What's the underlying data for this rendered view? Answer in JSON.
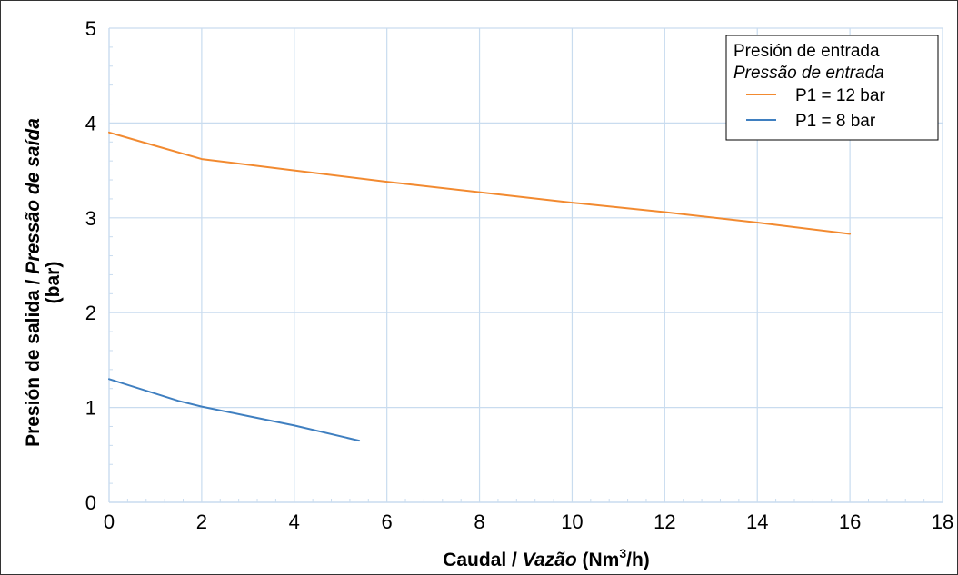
{
  "chart_data": {
    "type": "line",
    "xlabel_parts": [
      "Caudal / ",
      "Vazão",
      " (Nm",
      "3",
      "/h)"
    ],
    "ylabel_line1": [
      "Presión de salida / ",
      "Pressão de saída"
    ],
    "ylabel_line2": "(bar)",
    "xlim": [
      0,
      18
    ],
    "ylim": [
      0,
      5
    ],
    "x_ticks": [
      0,
      2,
      4,
      6,
      8,
      10,
      12,
      14,
      16,
      18
    ],
    "y_ticks": [
      0,
      1,
      2,
      3,
      4,
      5
    ],
    "grid": true,
    "legend": {
      "title_line1": "Presión de entrada",
      "title_line2": "Pressão de entrada",
      "placement": "top-right"
    },
    "series": [
      {
        "name": "P1 = 12 bar",
        "color": "#f28a30",
        "x": [
          0,
          1,
          2,
          4,
          6,
          8,
          10,
          12,
          14,
          16
        ],
        "y": [
          3.9,
          3.76,
          3.62,
          3.5,
          3.38,
          3.27,
          3.16,
          3.06,
          2.95,
          2.83
        ]
      },
      {
        "name": "P1 = 8 bar",
        "color": "#3f7fc0",
        "x": [
          0,
          1.5,
          2,
          3,
          4,
          5.4
        ],
        "y": [
          1.3,
          1.07,
          1.01,
          0.91,
          0.81,
          0.65
        ]
      }
    ]
  }
}
